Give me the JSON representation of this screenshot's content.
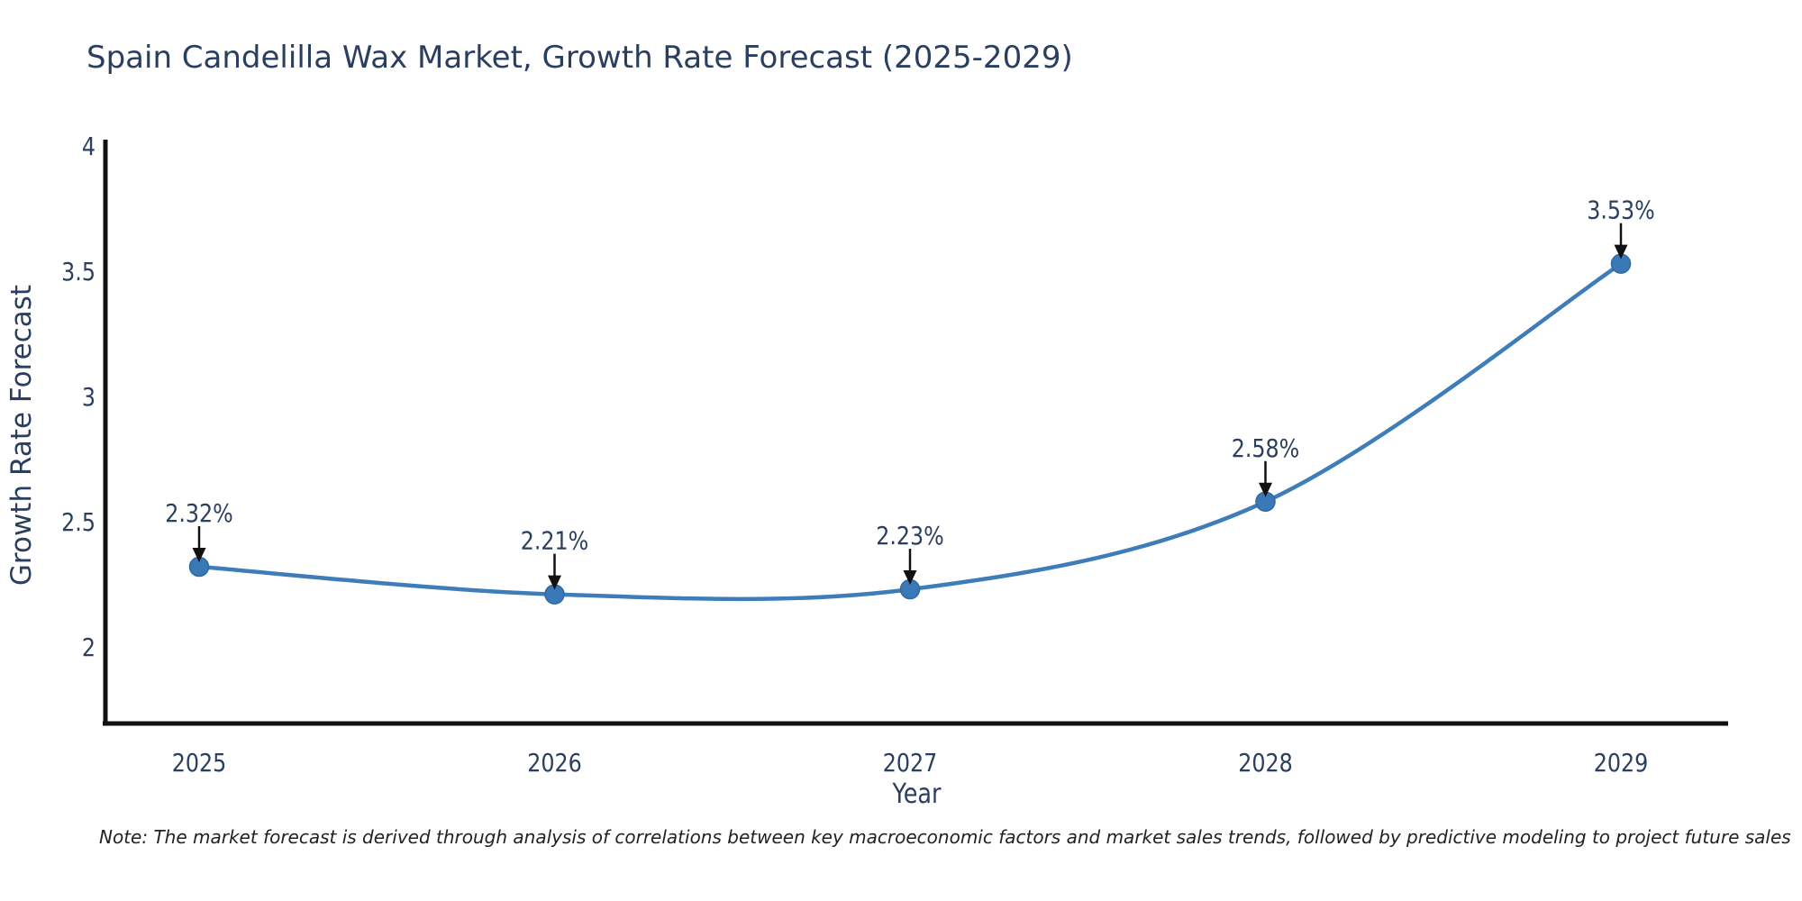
{
  "page": {
    "background": "#ffffff"
  },
  "chart_data": {
    "type": "line",
    "title": "Spain Candelilla Wax Market, Growth Rate Forecast (2025-2029)",
    "xlabel": "Year",
    "ylabel": "Growth Rate Forecast",
    "x": [
      "2025",
      "2026",
      "2027",
      "2028",
      "2029"
    ],
    "series": [
      {
        "name": "Growth Rate Forecast",
        "values": [
          2.32,
          2.21,
          2.23,
          2.58,
          3.53
        ]
      }
    ],
    "point_labels": [
      "2.32%",
      "2.21%",
      "2.23%",
      "2.58%",
      "3.53%"
    ],
    "y_ticks": [
      "4",
      "3.5",
      "3",
      "2.5",
      "2"
    ],
    "y_tick_values": [
      4,
      3.5,
      3,
      2.5,
      2
    ],
    "ylim": [
      1.69,
      4.03
    ],
    "grid": false,
    "legend": "none",
    "line_shape": "spline",
    "annotation_style": "value label above point with black down arrow",
    "colors": {
      "line": "#3e7cba",
      "marker_fill": "#3a79b8",
      "marker_edge": "#2d6aa0",
      "axis": "#111111",
      "arrow": "#111111",
      "text": "#2a3f5f",
      "note_text": "#222222",
      "background": "#ffffff"
    },
    "note": "Note: The market forecast is derived through analysis of correlations between key macroeconomic factors and market sales trends, followed by predictive modeling to project future sales"
  }
}
